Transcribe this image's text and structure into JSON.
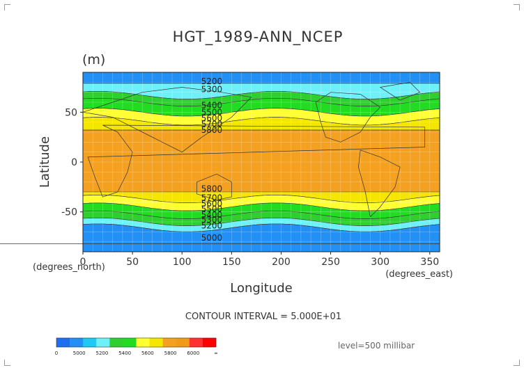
{
  "chart_data": {
    "type": "heatmap",
    "title": "HGT_1989-ANN_NCEP",
    "units": "(m)",
    "xlabel": "Longitude",
    "ylabel": "Latitude",
    "x_unit_label": "(degrees_east)",
    "y_unit_label": "(degrees_north)",
    "xlim": [
      0,
      360
    ],
    "ylim": [
      -90,
      90
    ],
    "x_ticks": [
      0,
      50,
      100,
      150,
      200,
      250,
      300,
      350
    ],
    "y_ticks": [
      -50,
      0,
      50
    ],
    "grid": true,
    "contour_interval_text": "CONTOUR INTERVAL = 5.000E+01",
    "level_text": "level=500 millibar",
    "colorbar": {
      "tick_labels": [
        "0",
        "5000",
        "5200",
        "5400",
        "5600",
        "5800",
        "6000",
        "∞"
      ],
      "colors": [
        "#1e6ff0",
        "#2290f5",
        "#1fc8f5",
        "#6ef0f8",
        "#30cf30",
        "#22dc22",
        "#ffff32",
        "#f5e600",
        "#f4a122",
        "#f09a18",
        "#ff3030",
        "#ff0000"
      ]
    },
    "bands": [
      {
        "lat_from": 90,
        "lat_to": 79,
        "value": 5150
      },
      {
        "lat_from": 79,
        "lat_to": 67,
        "value": 5350
      },
      {
        "lat_from": 67,
        "lat_to": 60,
        "value": 5450
      },
      {
        "lat_from": 60,
        "lat_to": 50,
        "value": 5550
      },
      {
        "lat_from": 50,
        "lat_to": 41,
        "value": 5650
      },
      {
        "lat_from": 41,
        "lat_to": 32,
        "value": 5750
      },
      {
        "lat_from": 32,
        "lat_to": -30,
        "value": 5850
      },
      {
        "lat_from": -30,
        "lat_to": -37,
        "value": 5750
      },
      {
        "lat_from": -37,
        "lat_to": -45,
        "value": 5650
      },
      {
        "lat_from": -45,
        "lat_to": -53,
        "value": 5550
      },
      {
        "lat_from": -53,
        "lat_to": -60,
        "value": 5450
      },
      {
        "lat_from": -60,
        "lat_to": -66,
        "value": 5350
      },
      {
        "lat_from": -66,
        "lat_to": -90,
        "value": 5050
      }
    ],
    "contour_labels": [
      {
        "text": "5200",
        "lon": 130,
        "lat": 81
      },
      {
        "text": "5300",
        "lon": 130,
        "lat": 73
      },
      {
        "text": "5400",
        "lon": 130,
        "lat": 57
      },
      {
        "text": "5500",
        "lon": 130,
        "lat": 50
      },
      {
        "text": "5600",
        "lon": 130,
        "lat": 44
      },
      {
        "text": "5700",
        "lon": 130,
        "lat": 38
      },
      {
        "text": "5800",
        "lon": 130,
        "lat": 32
      },
      {
        "text": "5800",
        "lon": 130,
        "lat": -27
      },
      {
        "text": "5700",
        "lon": 130,
        "lat": -36
      },
      {
        "text": "5600",
        "lon": 130,
        "lat": -42
      },
      {
        "text": "5500",
        "lon": 130,
        "lat": -47
      },
      {
        "text": "5400",
        "lon": 130,
        "lat": -53
      },
      {
        "text": "5300",
        "lon": 130,
        "lat": -58
      },
      {
        "text": "5200",
        "lon": 130,
        "lat": -64
      },
      {
        "text": "5000",
        "lon": 130,
        "lat": -76
      }
    ]
  }
}
